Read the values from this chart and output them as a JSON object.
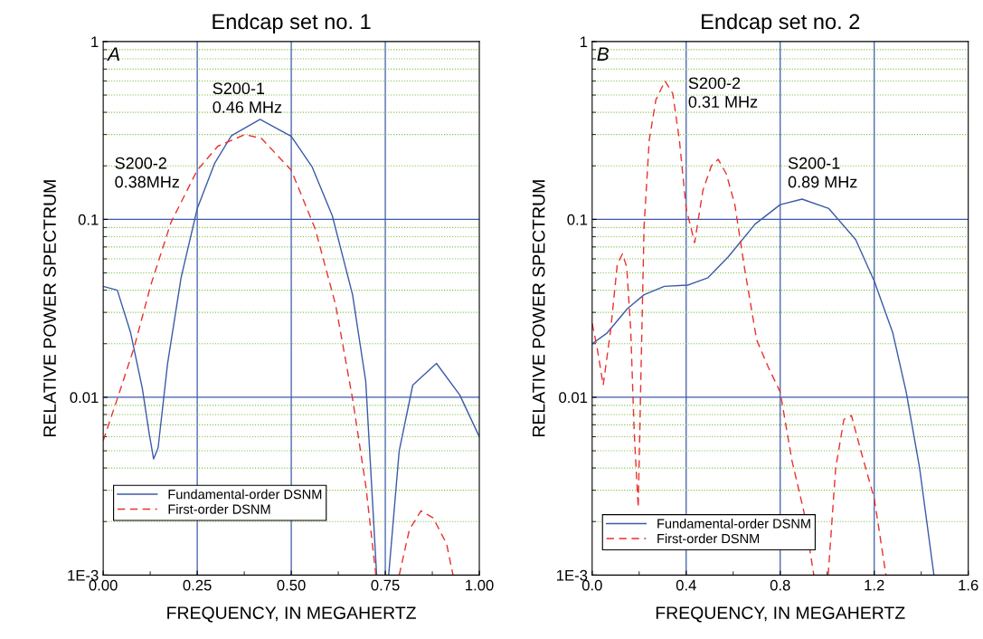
{
  "chart_data": [
    {
      "type": "line",
      "title": "Endcap set no. 1",
      "xlabel": "FREQUENCY, IN MEGAHERTZ",
      "ylabel": "RELATIVE POWER SPECTRUM",
      "log": "y",
      "grid": true,
      "legend": "bottom left",
      "xlim": [
        0,
        1
      ],
      "xticks": [
        {
          "value": 0,
          "label": "0.00"
        },
        {
          "value": 0.125,
          "label": null
        },
        {
          "value": 0.25,
          "label": "0.25"
        },
        {
          "value": 0.375,
          "label": null
        },
        {
          "value": 0.5,
          "label": "0.50"
        },
        {
          "value": 0.625,
          "label": null
        },
        {
          "value": 0.75,
          "label": "0.75"
        },
        {
          "value": 0.875,
          "label": null
        },
        {
          "value": 1,
          "label": "1.00"
        }
      ],
      "ylim": [
        0.001,
        1
      ],
      "yticks": [
        {
          "value": 0.001,
          "label": "1E-3"
        },
        {
          "value": 0.002,
          "label": null
        },
        {
          "value": 0.003,
          "label": null
        },
        {
          "value": 0.004,
          "label": null
        },
        {
          "value": 0.005,
          "label": null
        },
        {
          "value": 0.006,
          "label": null
        },
        {
          "value": 0.007,
          "label": null
        },
        {
          "value": 0.008,
          "label": null
        },
        {
          "value": 0.009,
          "label": null
        },
        0.01,
        {
          "value": 0.02,
          "label": null
        },
        {
          "value": 0.03,
          "label": null
        },
        {
          "value": 0.04,
          "label": null
        },
        {
          "value": 0.05,
          "label": null
        },
        {
          "value": 0.06,
          "label": null
        },
        {
          "value": 0.07,
          "label": null
        },
        {
          "value": 0.08,
          "label": null
        },
        {
          "value": 0.09,
          "label": null
        },
        0.1,
        {
          "value": 0.2,
          "label": null
        },
        {
          "value": 0.3,
          "label": null
        },
        {
          "value": 0.4,
          "label": null
        },
        {
          "value": 0.5,
          "label": null
        },
        {
          "value": 0.6,
          "label": null
        },
        {
          "value": 0.7,
          "label": null
        },
        {
          "value": 0.8,
          "label": null
        },
        {
          "value": 0.9,
          "label": null
        },
        1
      ],
      "annotations": [
        "A",
        "S200-1\n0.46 MHz",
        "S200-2\n0.38MHz"
      ],
      "series": [
        {
          "name": "Fundamental-order DSNM",
          "color": "#3c5aa8",
          "line_style": "solid",
          "x": [
            0,
            0.0375,
            0.073,
            0.104,
            0.122,
            0.134,
            0.146,
            0.171,
            0.207,
            0.25,
            0.296,
            0.341,
            0.417,
            0.5,
            0.555,
            0.609,
            0.663,
            0.698,
            0.716,
            0.727,
            0.743,
            0.759,
            0.787,
            0.823,
            0.886,
            0.948,
            1.0
          ],
          "values": [
            0.042,
            0.04,
            0.023,
            0.0112,
            0.0063,
            0.0045,
            0.0052,
            0.0154,
            0.047,
            0.115,
            0.206,
            0.296,
            0.365,
            0.293,
            0.198,
            0.105,
            0.0377,
            0.0123,
            0.0026,
            0.001,
            null,
            0.001,
            0.005,
            0.0117,
            0.0155,
            0.0103,
            0.006
          ]
        },
        {
          "name": "First-order DSNM",
          "color": "#e8312f",
          "line_style": "dashed",
          "x": [
            0,
            0.0375,
            0.082,
            0.127,
            0.18,
            0.25,
            0.305,
            0.377,
            0.421,
            0.5,
            0.564,
            0.618,
            0.663,
            0.698,
            0.725,
            0.755,
            0.787,
            0.814,
            0.845,
            0.877,
            0.913,
            0.93
          ],
          "values": [
            0.0057,
            0.0098,
            0.019,
            0.043,
            0.096,
            0.189,
            0.258,
            0.3,
            0.285,
            0.189,
            0.088,
            0.033,
            0.0098,
            0.0032,
            0.001,
            null,
            0.001,
            0.0018,
            0.0023,
            0.0021,
            0.0015,
            0.001
          ]
        }
      ]
    },
    {
      "type": "line",
      "title": "Endcap set no. 2",
      "xlabel": "FREQUENCY, IN MEGAHERTZ",
      "ylabel": "RELATIVE POWER SPECTRUM",
      "log": "y",
      "grid": true,
      "legend": "bottom left",
      "xlim": [
        0,
        1.6
      ],
      "xticks": [
        {
          "value": 0,
          "label": "0.0"
        },
        {
          "value": 0.2,
          "label": null
        },
        {
          "value": 0.4,
          "label": "0.4"
        },
        {
          "value": 0.6,
          "label": null
        },
        {
          "value": 0.8,
          "label": "0.8"
        },
        {
          "value": 1.0,
          "label": null
        },
        {
          "value": 1.2,
          "label": "1.2"
        },
        {
          "value": 1.4,
          "label": null
        },
        {
          "value": 1.6,
          "label": "1.6"
        }
      ],
      "ylim": [
        0.001,
        1
      ],
      "yticks": [
        {
          "value": 0.001,
          "label": "1E-3"
        },
        {
          "value": 0.002,
          "label": null
        },
        {
          "value": 0.003,
          "label": null
        },
        {
          "value": 0.004,
          "label": null
        },
        {
          "value": 0.005,
          "label": null
        },
        {
          "value": 0.006,
          "label": null
        },
        {
          "value": 0.007,
          "label": null
        },
        {
          "value": 0.008,
          "label": null
        },
        {
          "value": 0.009,
          "label": null
        },
        0.01,
        {
          "value": 0.02,
          "label": null
        },
        {
          "value": 0.03,
          "label": null
        },
        {
          "value": 0.04,
          "label": null
        },
        {
          "value": 0.05,
          "label": null
        },
        {
          "value": 0.06,
          "label": null
        },
        {
          "value": 0.07,
          "label": null
        },
        {
          "value": 0.08,
          "label": null
        },
        {
          "value": 0.09,
          "label": null
        },
        0.1,
        {
          "value": 0.2,
          "label": null
        },
        {
          "value": 0.3,
          "label": null
        },
        {
          "value": 0.4,
          "label": null
        },
        {
          "value": 0.5,
          "label": null
        },
        {
          "value": 0.6,
          "label": null
        },
        {
          "value": 0.7,
          "label": null
        },
        {
          "value": 0.8,
          "label": null
        },
        {
          "value": 0.9,
          "label": null
        },
        1
      ],
      "annotations": [
        "B",
        "S200-2\n0.31 MHz",
        "S200-1\n0.89 MHz"
      ],
      "series": [
        {
          "name": "Fundamental-order DSNM",
          "color": "#3c5aa8",
          "line_style": "solid",
          "x": [
            0,
            0.064,
            0.15,
            0.221,
            0.307,
            0.407,
            0.493,
            0.579,
            0.693,
            0.8,
            0.893,
            1.007,
            1.121,
            1.2,
            1.279,
            1.336,
            1.393,
            1.454
          ],
          "values": [
            0.02,
            0.023,
            0.0315,
            0.0377,
            0.042,
            0.0427,
            0.047,
            0.0616,
            0.094,
            0.121,
            0.13,
            0.115,
            0.077,
            0.045,
            0.023,
            0.0107,
            0.004,
            0.001
          ]
        },
        {
          "name": "First-order DSNM",
          "color": "#e8312f",
          "line_style": "dashed",
          "x": [
            0,
            0.021,
            0.047,
            0.079,
            0.107,
            0.129,
            0.147,
            0.164,
            0.179,
            0.196,
            0.207,
            0.221,
            0.243,
            0.271,
            0.31,
            0.343,
            0.371,
            0.4,
            0.436,
            0.471,
            0.507,
            0.536,
            0.571,
            0.607,
            0.65,
            0.7,
            0.75,
            0.8,
            0.85,
            0.9,
            0.943,
            0.97,
            1.004,
            1.036,
            1.071,
            1.103,
            1.143,
            1.2,
            1.25
          ],
          "values": [
            0.026,
            0.019,
            0.0117,
            0.024,
            0.056,
            0.064,
            0.054,
            0.024,
            0.0063,
            0.0024,
            0.0123,
            0.092,
            0.28,
            0.47,
            0.6,
            0.51,
            0.28,
            0.115,
            0.074,
            0.145,
            0.2,
            0.218,
            0.18,
            0.121,
            0.0515,
            0.021,
            0.0147,
            0.0107,
            0.0044,
            0.0023,
            0.001,
            null,
            0.001,
            0.004,
            0.0075,
            0.0079,
            0.005,
            0.0027,
            0.001
          ]
        }
      ]
    }
  ]
}
